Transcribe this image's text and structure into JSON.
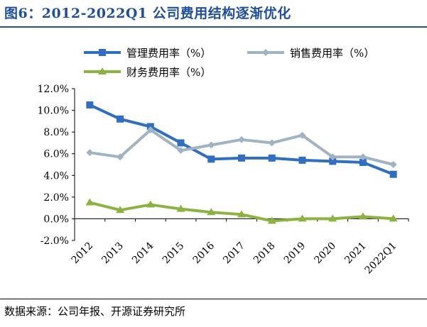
{
  "figure": {
    "title": "图6：2012-2022Q1 公司费用结构逐渐优化",
    "source": "数据来源：公司年报、开源证券研究所"
  },
  "chart_data": {
    "type": "line",
    "categories": [
      "2012",
      "2013",
      "2014",
      "2015",
      "2016",
      "2017",
      "2018",
      "2019",
      "2020",
      "2021",
      "2022Q1"
    ],
    "yticks": [
      "12.0%",
      "10.0%",
      "8.0%",
      "6.0%",
      "4.0%",
      "2.0%",
      "0.0%",
      "-2.0%"
    ],
    "ylim": [
      -2,
      12
    ],
    "grid": false,
    "legend_position": "top",
    "series": [
      {
        "name": "管理费用率（%）",
        "color": "#2e6fc5",
        "marker": "square",
        "values": [
          10.5,
          9.2,
          8.5,
          7.0,
          5.5,
          5.6,
          5.6,
          5.4,
          5.3,
          5.2,
          4.1
        ]
      },
      {
        "name": "销售费用率（%）",
        "color": "#9fb3c3",
        "marker": "diamond",
        "values": [
          6.1,
          5.7,
          8.2,
          6.3,
          6.8,
          7.3,
          7.0,
          7.7,
          5.7,
          5.7,
          5.0
        ]
      },
      {
        "name": "财务费用率（%）",
        "color": "#8db33f",
        "marker": "triangle",
        "values": [
          1.5,
          0.8,
          1.3,
          0.9,
          0.6,
          0.4,
          -0.2,
          0.0,
          0.0,
          0.2,
          0.0
        ]
      }
    ]
  }
}
